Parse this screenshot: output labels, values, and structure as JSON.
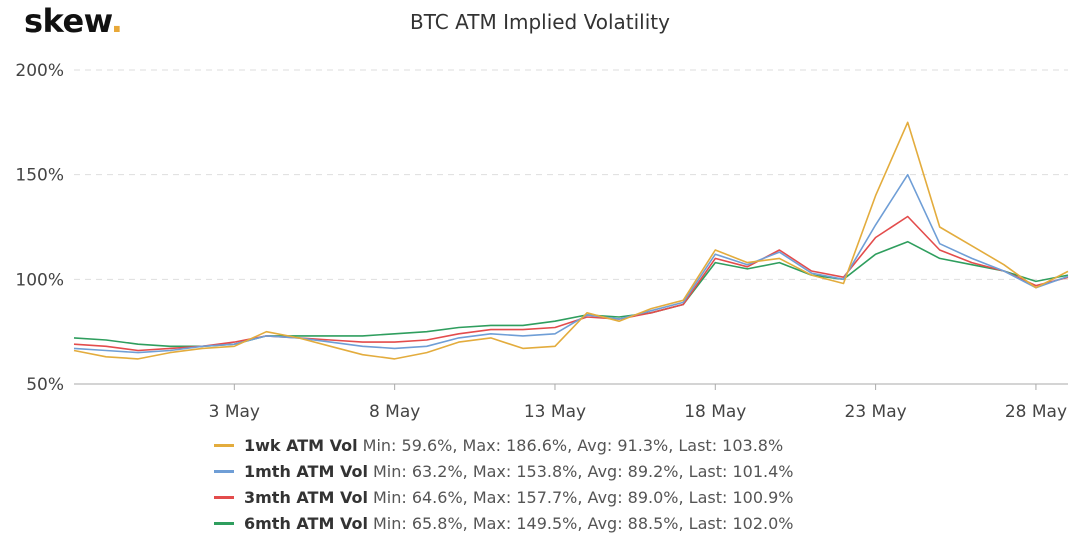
{
  "brand": {
    "name": "skew",
    "dot": "."
  },
  "chart_data": {
    "type": "line",
    "title": "BTC ATM Implied Volatility",
    "xlabel": "",
    "ylabel": "",
    "y_ticks": [
      "50%",
      "100%",
      "150%",
      "200%"
    ],
    "ylim": [
      50,
      200
    ],
    "xlim": [
      "2020-04-28",
      "2020-05-29"
    ],
    "x_ticks": [
      {
        "label": "3 May",
        "date": "2020-05-03"
      },
      {
        "label": "8 May",
        "date": "2020-05-08"
      },
      {
        "label": "13 May",
        "date": "2020-05-13"
      },
      {
        "label": "18 May",
        "date": "2020-05-18"
      },
      {
        "label": "23 May",
        "date": "2020-05-23"
      },
      {
        "label": "28 May",
        "date": "2020-05-28"
      }
    ],
    "grid": "horizontal",
    "legend_position": "bottom",
    "x": [
      "2020-04-28",
      "2020-04-29",
      "2020-04-30",
      "2020-05-01",
      "2020-05-02",
      "2020-05-03",
      "2020-05-04",
      "2020-05-05",
      "2020-05-06",
      "2020-05-07",
      "2020-05-08",
      "2020-05-09",
      "2020-05-10",
      "2020-05-11",
      "2020-05-12",
      "2020-05-13",
      "2020-05-14",
      "2020-05-15",
      "2020-05-16",
      "2020-05-17",
      "2020-05-18",
      "2020-05-19",
      "2020-05-20",
      "2020-05-21",
      "2020-05-22",
      "2020-05-23",
      "2020-05-24",
      "2020-05-25",
      "2020-05-26",
      "2020-05-27",
      "2020-05-28",
      "2020-05-29"
    ],
    "series": [
      {
        "name": "1wk ATM Vol",
        "stats": "Min: 59.6%, Max: 186.6%, Avg: 91.3%, Last: 103.8%",
        "color": "#e3ac3d",
        "values": [
          66,
          63,
          62,
          65,
          67,
          68,
          75,
          72,
          68,
          64,
          62,
          65,
          70,
          72,
          67,
          68,
          84,
          80,
          86,
          90,
          114,
          108,
          110,
          102,
          98,
          140,
          175,
          125,
          116,
          107,
          96,
          103.8
        ]
      },
      {
        "name": "1mth ATM Vol",
        "stats": "Min: 63.2%, Max: 153.8%, Avg: 89.2%, Last: 101.4%",
        "color": "#6f9ed6",
        "values": [
          67,
          66,
          65,
          66,
          68,
          69,
          73,
          72,
          70,
          68,
          67,
          68,
          72,
          74,
          73,
          74,
          83,
          81,
          85,
          89,
          112,
          107,
          113,
          103,
          100,
          126,
          150,
          117,
          110,
          104,
          96,
          101.4
        ]
      },
      {
        "name": "3mth ATM Vol",
        "stats": "Min: 64.6%, Max: 157.7%, Avg: 89.0%, Last: 100.9%",
        "color": "#e34c4c",
        "values": [
          69,
          68,
          66,
          67,
          68,
          70,
          73,
          72,
          71,
          70,
          70,
          71,
          74,
          76,
          76,
          77,
          82,
          81,
          84,
          88,
          110,
          106,
          114,
          104,
          101,
          120,
          130,
          114,
          108,
          104,
          97,
          100.9
        ]
      },
      {
        "name": "6mth ATM Vol",
        "stats": "Min: 65.8%, Max: 149.5%, Avg: 88.5%, Last: 102.0%",
        "color": "#2f9e5e",
        "values": [
          72,
          71,
          69,
          68,
          68,
          69,
          73,
          73,
          73,
          73,
          74,
          75,
          77,
          78,
          78,
          80,
          83,
          82,
          84,
          88,
          108,
          105,
          108,
          102,
          100,
          112,
          118,
          110,
          107,
          104,
          99,
          102.0
        ]
      }
    ]
  }
}
